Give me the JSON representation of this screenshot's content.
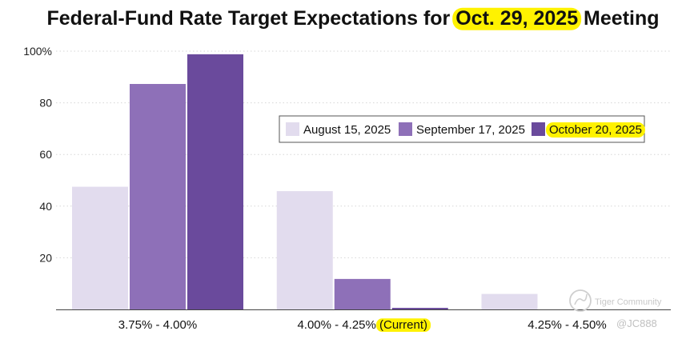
{
  "chart_data": {
    "type": "bar",
    "title_parts": [
      {
        "text": "Federal-Fund Rate Target Expectations for ",
        "highlight": false
      },
      {
        "text": "Oct. 29, 2025",
        "highlight": true
      },
      {
        "text": " Meeting",
        "highlight": false
      }
    ],
    "categories": [
      {
        "parts": [
          {
            "text": "3.75% - 4.00%",
            "highlight": false
          }
        ]
      },
      {
        "parts": [
          {
            "text": "4.00% - 4.25% ",
            "highlight": false
          },
          {
            "text": "(Current)",
            "highlight": true
          }
        ]
      },
      {
        "parts": [
          {
            "text": "4.25% - 4.50%",
            "highlight": false
          }
        ]
      }
    ],
    "series": [
      {
        "name": "August 15, 2025",
        "color": "#e2dcee",
        "values": [
          47.5,
          45.8,
          6.0
        ],
        "highlight": false
      },
      {
        "name": "September 17, 2025",
        "color": "#8e70b8",
        "values": [
          87.3,
          11.8,
          0
        ],
        "highlight": false
      },
      {
        "name": "October 20, 2025",
        "color": "#6a4a9c",
        "values": [
          98.8,
          0.6,
          0
        ],
        "highlight": true
      }
    ],
    "ylim": [
      0,
      100
    ],
    "yticks": [
      20,
      40,
      60,
      80,
      100
    ],
    "ytick_labels": [
      "20",
      "40",
      "60",
      "80",
      "100%"
    ],
    "grid": true,
    "legend_position": "center-right",
    "highlight_color": "#fff200",
    "xlabel": "",
    "ylabel": ""
  },
  "watermark": {
    "brand": "Tiger Community",
    "handle": "@JC888"
  }
}
